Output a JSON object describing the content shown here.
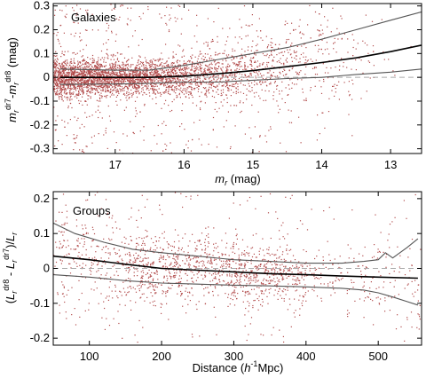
{
  "colors": {
    "points": "#b24c4c",
    "median": "#000000",
    "envelope": "#555555",
    "zero_line": "#aaaaaa"
  },
  "chart_data": [
    {
      "type": "scatter",
      "title": "Galaxies",
      "xlabel": "m_r (mag)",
      "ylabel": "m_r^dr7 - m_r^dr8 (mag)",
      "xlim": [
        17.9,
        12.55
      ],
      "ylim": [
        -0.32,
        0.31
      ],
      "x_reversed": true,
      "xticks": [
        17,
        16,
        15,
        14,
        13
      ],
      "yticks": [
        -0.3,
        -0.2,
        -0.1,
        0,
        0.1,
        0.2,
        0.3
      ],
      "reference_line_y": 0,
      "median": {
        "x": [
          17.8,
          17.0,
          16.5,
          16.0,
          15.5,
          15.0,
          14.5,
          14.0,
          13.5,
          13.0,
          12.55
        ],
        "y": [
          0.0,
          0.0,
          0.0,
          0.005,
          0.015,
          0.028,
          0.045,
          0.062,
          0.082,
          0.108,
          0.135
        ]
      },
      "upper_envelope": {
        "x": [
          17.8,
          17.0,
          16.5,
          16.0,
          15.5,
          15.0,
          14.5,
          14.0,
          13.5,
          13.0,
          12.55
        ],
        "y": [
          0.035,
          0.03,
          0.03,
          0.05,
          0.075,
          0.1,
          0.125,
          0.16,
          0.2,
          0.24,
          0.275
        ]
      },
      "lower_envelope": {
        "x": [
          17.8,
          17.0,
          16.5,
          16.0,
          15.5,
          15.0,
          14.5,
          14.0,
          13.5,
          13.0,
          12.55
        ],
        "y": [
          -0.03,
          -0.028,
          -0.025,
          -0.02,
          -0.02,
          -0.012,
          -0.005,
          0.0,
          0.012,
          0.022,
          0.035
        ]
      },
      "scatter_summary": {
        "x_range": [
          17.9,
          12.55
        ],
        "density": "highest at faint end (m_r > 16), sparse at bright end"
      }
    },
    {
      "type": "scatter",
      "title": "Groups",
      "xlabel": "Distance (h^-1 Mpc)",
      "ylabel": "(L_r^dr8 - L_r^dr7)/L_r",
      "xlim": [
        50,
        560
      ],
      "ylim": [
        -0.22,
        0.22
      ],
      "xticks": [
        100,
        200,
        300,
        400,
        500
      ],
      "yticks": [
        -0.2,
        -0.1,
        0,
        0.1,
        0.2
      ],
      "reference_line_y": 0,
      "median": {
        "x": [
          50,
          100,
          150,
          200,
          250,
          300,
          350,
          400,
          450,
          500,
          555
        ],
        "y": [
          0.035,
          0.025,
          0.012,
          0.0,
          -0.005,
          -0.01,
          -0.015,
          -0.018,
          -0.022,
          -0.025,
          -0.028
        ]
      },
      "upper_envelope": {
        "x": [
          50,
          80,
          120,
          160,
          200,
          250,
          300,
          350,
          400,
          450,
          480,
          500,
          510,
          520,
          530,
          540,
          555
        ],
        "y": [
          0.13,
          0.1,
          0.075,
          0.055,
          0.045,
          0.035,
          0.025,
          0.02,
          0.015,
          0.015,
          0.02,
          0.025,
          0.045,
          0.03,
          0.045,
          0.06,
          0.085
        ]
      },
      "lower_envelope": {
        "x": [
          50,
          100,
          150,
          200,
          250,
          300,
          350,
          400,
          450,
          480,
          500,
          520,
          540,
          555
        ],
        "y": [
          -0.018,
          -0.025,
          -0.035,
          -0.042,
          -0.045,
          -0.048,
          -0.05,
          -0.053,
          -0.057,
          -0.062,
          -0.07,
          -0.082,
          -0.095,
          -0.105
        ]
      },
      "scatter_summary": {
        "x_range": [
          50,
          560
        ],
        "density": "concentrated between 150 and 400 h^-1 Mpc, sparse beyond 450"
      }
    }
  ]
}
